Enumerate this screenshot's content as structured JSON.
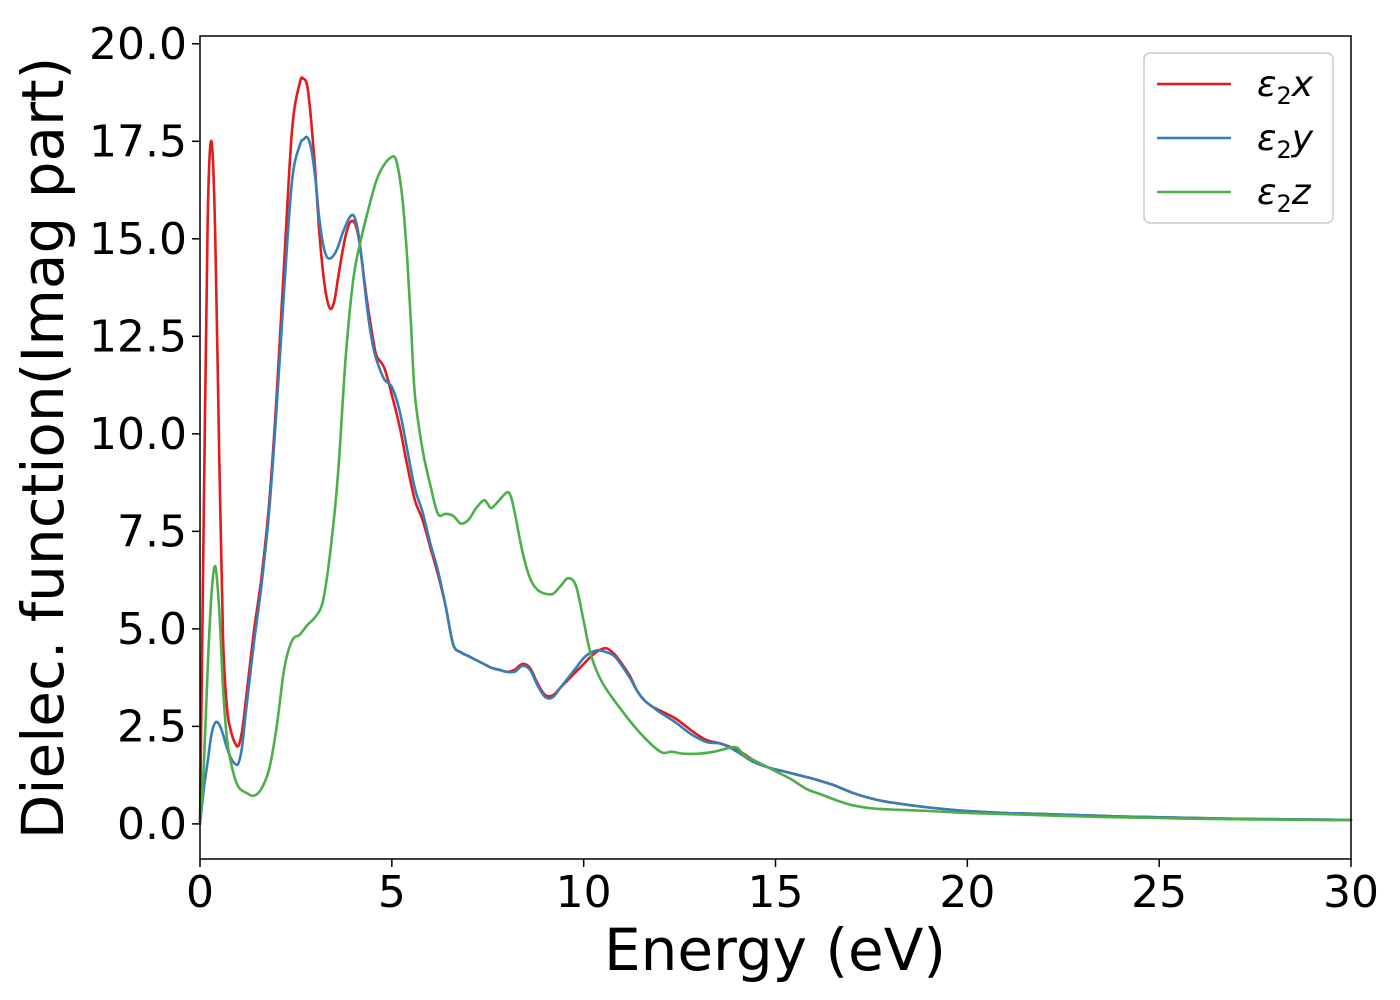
{
  "chart_data": {
    "type": "line",
    "xlabel": "Energy (eV)",
    "ylabel": "Dielec. function(Imag part)",
    "xlim": [
      0,
      30
    ],
    "ylim": [
      -0.9,
      20.2
    ],
    "x_ticks": [
      0,
      5,
      10,
      15,
      20,
      25,
      30
    ],
    "x_tick_labels": [
      "0",
      "5",
      "10",
      "15",
      "20",
      "25",
      "30"
    ],
    "y_ticks": [
      0,
      2.5,
      5,
      7.5,
      10,
      12.5,
      15,
      17.5,
      20
    ],
    "y_tick_labels": [
      "0.0",
      "2.5",
      "5.0",
      "7.5",
      "10.0",
      "12.5",
      "15.0",
      "17.5",
      "20.0"
    ],
    "grid": false,
    "legend_position": "top-right",
    "series": [
      {
        "name": "ε2x",
        "legend_main": "ε",
        "legend_sub": "2",
        "legend_suffix": "x",
        "color": "#e41a1c",
        "x": [
          0,
          0.1,
          0.2,
          0.3,
          0.4,
          0.5,
          0.6,
          0.7,
          0.8,
          0.9,
          1.0,
          1.1,
          1.2,
          1.4,
          1.6,
          1.8,
          2.0,
          2.2,
          2.4,
          2.6,
          2.7,
          2.8,
          2.9,
          3.0,
          3.1,
          3.2,
          3.3,
          3.4,
          3.5,
          3.6,
          3.7,
          3.8,
          3.9,
          4.0,
          4.1,
          4.2,
          4.3,
          4.4,
          4.5,
          4.6,
          4.8,
          5.0,
          5.2,
          5.4,
          5.6,
          5.8,
          6.0,
          6.2,
          6.4,
          6.6,
          6.8,
          7.0,
          7.2,
          7.4,
          7.6,
          7.8,
          8.0,
          8.2,
          8.4,
          8.6,
          8.8,
          9.0,
          9.2,
          9.4,
          9.6,
          9.8,
          10.0,
          10.2,
          10.4,
          10.6,
          10.8,
          11.0,
          11.2,
          11.4,
          11.6,
          11.8,
          12.0,
          12.4,
          12.8,
          13.2,
          13.6,
          14.0,
          14.4,
          14.8,
          15.2,
          15.6,
          16.0,
          16.5,
          17.0,
          17.5,
          18.0,
          19.0,
          20.0,
          21.0,
          22.0,
          23.0,
          24.0,
          25.0,
          26.0,
          27.0,
          28.0,
          29.0,
          30.0
        ],
        "y": [
          0.0,
          8.0,
          15.5,
          17.5,
          15.0,
          9.5,
          4.8,
          3.0,
          2.4,
          2.1,
          2.0,
          2.4,
          3.2,
          4.9,
          6.3,
          8.2,
          11.0,
          14.5,
          17.8,
          19.0,
          19.1,
          18.9,
          18.0,
          16.8,
          15.3,
          14.2,
          13.5,
          13.2,
          13.4,
          14.0,
          14.6,
          15.1,
          15.4,
          15.45,
          15.2,
          14.6,
          13.8,
          13.1,
          12.5,
          12.0,
          11.7,
          11.0,
          10.2,
          9.2,
          8.3,
          7.8,
          7.1,
          6.4,
          5.6,
          4.6,
          4.4,
          4.3,
          4.2,
          4.1,
          4.0,
          3.95,
          3.9,
          3.95,
          4.1,
          4.0,
          3.6,
          3.3,
          3.3,
          3.5,
          3.7,
          3.9,
          4.1,
          4.3,
          4.45,
          4.5,
          4.35,
          4.1,
          3.8,
          3.4,
          3.15,
          3.0,
          2.9,
          2.7,
          2.4,
          2.15,
          2.05,
          1.9,
          1.65,
          1.45,
          1.35,
          1.25,
          1.15,
          1.0,
          0.8,
          0.65,
          0.55,
          0.42,
          0.33,
          0.28,
          0.25,
          0.22,
          0.19,
          0.17,
          0.15,
          0.13,
          0.12,
          0.11,
          0.1
        ]
      },
      {
        "name": "ε2y",
        "legend_main": "ε",
        "legend_sub": "2",
        "legend_suffix": "y",
        "color": "#377eb8",
        "x": [
          0,
          0.1,
          0.2,
          0.3,
          0.4,
          0.5,
          0.6,
          0.7,
          0.8,
          0.9,
          1.0,
          1.1,
          1.2,
          1.4,
          1.6,
          1.8,
          2.0,
          2.2,
          2.4,
          2.6,
          2.7,
          2.8,
          2.9,
          3.0,
          3.1,
          3.2,
          3.3,
          3.4,
          3.5,
          3.6,
          3.7,
          3.8,
          3.9,
          4.0,
          4.1,
          4.2,
          4.3,
          4.4,
          4.5,
          4.6,
          4.8,
          5.0,
          5.2,
          5.4,
          5.6,
          5.8,
          6.0,
          6.2,
          6.4,
          6.6,
          6.8,
          7.0,
          7.2,
          7.4,
          7.6,
          7.8,
          8.0,
          8.2,
          8.4,
          8.6,
          8.8,
          9.0,
          9.2,
          9.4,
          9.6,
          9.8,
          10.0,
          10.2,
          10.4,
          10.6,
          10.8,
          11.0,
          11.2,
          11.4,
          11.6,
          11.8,
          12.0,
          12.4,
          12.8,
          13.2,
          13.6,
          14.0,
          14.4,
          14.8,
          15.2,
          15.6,
          16.0,
          16.5,
          17.0,
          17.5,
          18.0,
          19.0,
          20.0,
          21.0,
          22.0,
          23.0,
          24.0,
          25.0,
          26.0,
          27.0,
          28.0,
          29.0,
          30.0
        ],
        "y": [
          0.0,
          0.9,
          1.6,
          2.3,
          2.6,
          2.55,
          2.3,
          1.95,
          1.7,
          1.55,
          1.55,
          2.0,
          2.9,
          4.6,
          6.1,
          8.0,
          10.7,
          13.8,
          16.5,
          17.4,
          17.55,
          17.6,
          17.3,
          16.6,
          15.6,
          14.9,
          14.55,
          14.5,
          14.6,
          14.8,
          15.1,
          15.35,
          15.55,
          15.6,
          15.3,
          14.6,
          13.7,
          12.9,
          12.3,
          11.9,
          11.4,
          11.2,
          10.6,
          9.6,
          8.6,
          8.0,
          7.2,
          6.5,
          5.6,
          4.6,
          4.4,
          4.3,
          4.2,
          4.1,
          4.0,
          3.95,
          3.9,
          3.9,
          4.05,
          3.95,
          3.55,
          3.25,
          3.25,
          3.5,
          3.75,
          4.0,
          4.25,
          4.4,
          4.45,
          4.4,
          4.3,
          4.05,
          3.75,
          3.4,
          3.15,
          3.0,
          2.85,
          2.6,
          2.3,
          2.1,
          2.05,
          1.85,
          1.6,
          1.45,
          1.35,
          1.25,
          1.15,
          1.0,
          0.8,
          0.65,
          0.55,
          0.42,
          0.33,
          0.28,
          0.25,
          0.22,
          0.19,
          0.17,
          0.15,
          0.13,
          0.12,
          0.11,
          0.1
        ]
      },
      {
        "name": "ε2z",
        "legend_main": "ε",
        "legend_sub": "2",
        "legend_suffix": "z",
        "color": "#4daf4a",
        "x": [
          0,
          0.1,
          0.2,
          0.3,
          0.4,
          0.5,
          0.6,
          0.7,
          0.8,
          0.9,
          1.0,
          1.1,
          1.2,
          1.4,
          1.6,
          1.8,
          2.0,
          2.2,
          2.4,
          2.6,
          2.8,
          3.0,
          3.2,
          3.4,
          3.6,
          3.8,
          4.0,
          4.2,
          4.4,
          4.6,
          4.8,
          5.0,
          5.1,
          5.2,
          5.3,
          5.4,
          5.5,
          5.6,
          5.8,
          6.0,
          6.2,
          6.4,
          6.6,
          6.8,
          7.0,
          7.2,
          7.4,
          7.5,
          7.6,
          7.8,
          8.0,
          8.1,
          8.2,
          8.4,
          8.6,
          8.8,
          9.0,
          9.2,
          9.4,
          9.6,
          9.8,
          10.0,
          10.2,
          10.5,
          11.0,
          11.5,
          12.0,
          12.3,
          12.6,
          13.0,
          13.4,
          13.8,
          14.0,
          14.2,
          14.6,
          15.0,
          15.4,
          15.8,
          16.2,
          16.6,
          17.0,
          17.5,
          18.0,
          19.0,
          20.0,
          21.0,
          22.0,
          23.0,
          24.0,
          25.0,
          26.0,
          27.0,
          28.0,
          29.0,
          30.0
        ],
        "y": [
          0.0,
          1.5,
          4.0,
          5.9,
          6.6,
          5.5,
          3.5,
          2.2,
          1.6,
          1.2,
          0.95,
          0.85,
          0.8,
          0.72,
          0.9,
          1.4,
          2.5,
          4.0,
          4.7,
          4.85,
          5.1,
          5.3,
          5.7,
          7.0,
          9.0,
          12.0,
          14.0,
          15.0,
          15.8,
          16.5,
          16.9,
          17.1,
          17.05,
          16.6,
          15.8,
          14.5,
          12.8,
          11.0,
          9.6,
          8.7,
          7.95,
          7.95,
          7.9,
          7.7,
          7.8,
          8.1,
          8.3,
          8.2,
          8.1,
          8.3,
          8.5,
          8.4,
          8.0,
          7.0,
          6.3,
          6.0,
          5.9,
          5.9,
          6.1,
          6.3,
          6.1,
          5.2,
          4.3,
          3.6,
          2.9,
          2.3,
          1.85,
          1.85,
          1.8,
          1.8,
          1.85,
          1.95,
          1.95,
          1.75,
          1.55,
          1.35,
          1.15,
          0.9,
          0.75,
          0.6,
          0.48,
          0.4,
          0.37,
          0.33,
          0.28,
          0.25,
          0.22,
          0.19,
          0.17,
          0.15,
          0.13,
          0.12,
          0.11,
          0.1,
          0.1
        ]
      }
    ]
  }
}
